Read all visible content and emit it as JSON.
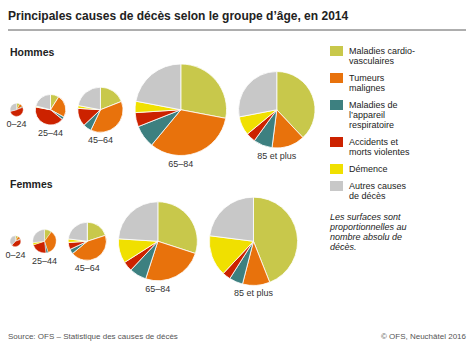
{
  "chart_data": {
    "type": "pie",
    "title": "Principales causes de décès selon le groupe d’âge, en 2014",
    "categories": [
      "Maladies cardio-\nvasculaires",
      "Tumeurs\nmalignes",
      "Maladies de\nl’appareil\nrespiratoire",
      "Accidents et\nmorts violentes",
      "Démence",
      "Autres causes\nde décès"
    ],
    "colors": [
      "#c8c84b",
      "#e8720c",
      "#3d8080",
      "#cc2200",
      "#f0e000",
      "#c8c8c8"
    ],
    "legend": "right",
    "groups": [
      {
        "name": "Hommes",
        "series": [
          {
            "name": "0–24",
            "size": 900,
            "values": [
              0.08,
              0.09,
              0.02,
              0.52,
              0.0,
              0.29
            ]
          },
          {
            "name": "25–44",
            "size": 4800,
            "values": [
              0.09,
              0.24,
              0.03,
              0.42,
              0.01,
              0.21
            ]
          },
          {
            "name": "45–64",
            "size": 10500,
            "values": [
              0.19,
              0.38,
              0.06,
              0.13,
              0.02,
              0.22
            ]
          },
          {
            "name": "65–84",
            "size": 43000,
            "values": [
              0.28,
              0.33,
              0.08,
              0.05,
              0.04,
              0.22
            ]
          },
          {
            "name": "85 et plus",
            "size": 30000,
            "values": [
              0.38,
              0.14,
              0.08,
              0.04,
              0.08,
              0.28
            ]
          }
        ]
      },
      {
        "name": "Femmes",
        "series": [
          {
            "name": "0–24",
            "size": 600,
            "values": [
              0.08,
              0.1,
              0.02,
              0.42,
              0.0,
              0.38
            ]
          },
          {
            "name": "25–44",
            "size": 2800,
            "values": [
              0.1,
              0.35,
              0.03,
              0.22,
              0.03,
              0.27
            ]
          },
          {
            "name": "45–64",
            "size": 7500,
            "values": [
              0.2,
              0.44,
              0.04,
              0.06,
              0.03,
              0.23
            ]
          },
          {
            "name": "65–84",
            "size": 32000,
            "values": [
              0.3,
              0.25,
              0.07,
              0.04,
              0.1,
              0.24
            ]
          },
          {
            "name": "85 et plus",
            "size": 40000,
            "values": [
              0.44,
              0.1,
              0.05,
              0.03,
              0.15,
              0.23
            ]
          }
        ]
      }
    ],
    "annotations": [
      "Les surfaces sont\nproportionnelles au\nnombre absolu de\ndécès.",
      "Source: OFS – Statistique des causes de décès",
      "© OFS, Neuchâtel 2016"
    ]
  }
}
